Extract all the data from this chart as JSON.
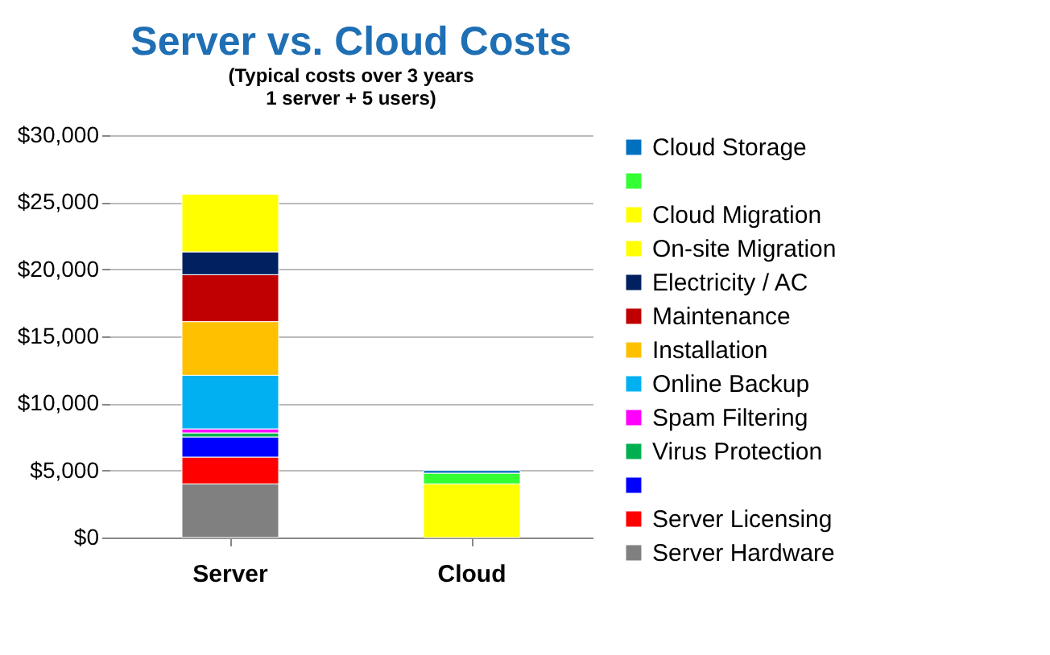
{
  "chart_data": {
    "type": "bar",
    "title": "Server vs. Cloud Costs",
    "subtitle": "(Typical costs over 3 years\n1 server + 5 users)",
    "categories": [
      "Server",
      "Cloud"
    ],
    "stacked": true,
    "grid": "y",
    "legend": "right",
    "ylim": [
      0,
      30000
    ],
    "yticks": [
      {
        "value": 0,
        "label": "$0"
      },
      {
        "value": 5000,
        "label": "$5,000"
      },
      {
        "value": 10000,
        "label": "$10,000"
      },
      {
        "value": 15000,
        "label": "$15,000"
      },
      {
        "value": 20000,
        "label": "$20,000"
      },
      {
        "value": 25000,
        "label": "$25,000"
      },
      {
        "value": 30000,
        "label": "$30,000"
      }
    ],
    "series": [
      {
        "name": "Server Hardware",
        "color": "#808080",
        "values": [
          4000,
          null
        ]
      },
      {
        "name": "Server Licensing",
        "color": "#ff0000",
        "values": [
          2000,
          null
        ]
      },
      {
        "name": null,
        "color": "#0000ff",
        "values": [
          1500,
          null
        ]
      },
      {
        "name": "Virus Protection",
        "color": "#00b050",
        "values": [
          300,
          null
        ]
      },
      {
        "name": "Spam Filtering",
        "color": "#ff00ff",
        "values": [
          300,
          null
        ]
      },
      {
        "name": "Online Backup",
        "color": "#00b0f0",
        "values": [
          4000,
          null
        ]
      },
      {
        "name": "Installation",
        "color": "#ffc000",
        "values": [
          4000,
          null
        ]
      },
      {
        "name": "Maintenance",
        "color": "#c00000",
        "values": [
          3500,
          null
        ]
      },
      {
        "name": "Electricity / AC",
        "color": "#002060",
        "values": [
          1700,
          null
        ]
      },
      {
        "name": "On-site Migration",
        "color": "#ffff00",
        "values": [
          4300,
          null
        ]
      },
      {
        "name": "Cloud Migration",
        "color": "#ffff01",
        "values": [
          null,
          4000
        ]
      },
      {
        "name": null,
        "color": "#33ff33",
        "values": [
          null,
          800
        ]
      },
      {
        "name": "Cloud Storage",
        "color": "#0070c0",
        "values": [
          null,
          200
        ]
      }
    ]
  }
}
